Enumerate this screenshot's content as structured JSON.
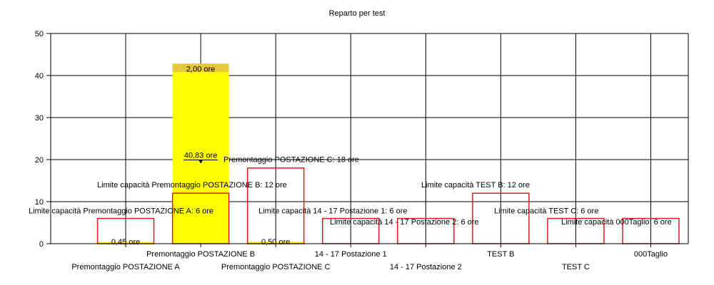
{
  "chart_data": {
    "type": "bar",
    "title": "Reparto per test",
    "xlabel": "",
    "ylabel": "",
    "ylim": [
      0,
      50
    ],
    "yticks": [
      0,
      10,
      20,
      30,
      40,
      50
    ],
    "grid": true,
    "categories": [
      "Premontaggio POSTAZIONE A",
      "Premontaggio POSTAZIONE B",
      "Premontaggio POSTAZIONE C",
      "14 - 17 Postazione 1",
      "14 - 17 Postazione 2",
      "TEST B",
      "TEST C",
      "000Taglio"
    ],
    "series": [
      {
        "values": [
          0.45,
          40.83,
          0.5,
          0,
          0,
          0,
          0,
          0
        ],
        "labels": [
          "0,45 ore",
          "40,83 ore",
          "0,50 ore",
          "",
          "",
          "",
          "",
          ""
        ],
        "color": "#ffff00"
      },
      {
        "values": [
          0,
          2.0,
          0,
          0,
          0,
          0,
          0,
          0
        ],
        "labels": [
          "",
          "2,00 ore",
          "",
          "",
          "",
          "",
          "",
          ""
        ],
        "color": "#e6c83a"
      }
    ],
    "capacity": {
      "values": [
        6,
        12,
        18,
        6,
        6,
        12,
        6,
        6
      ],
      "labels": [
        "Limite capacità Premontaggio POSTAZIONE A: 6 ore",
        "Limite capacità Premontaggio POSTAZIONE B: 12 ore",
        "Premontaggio POSTAZIONE C: 18 ore",
        "Limite capacità 14 - 17 Postazione 1: 6 ore",
        "Limite capacità 14 - 17 Postazione 2: 6 ore",
        "Limite capacità TEST B: 12 ore",
        "Limite capacità TEST C: 6 ore",
        "Limite capacità 000Taglio: 6 ore"
      ],
      "color": "#e01b1b"
    },
    "colors": {
      "axis": "#000000",
      "grid": "#000000"
    }
  }
}
